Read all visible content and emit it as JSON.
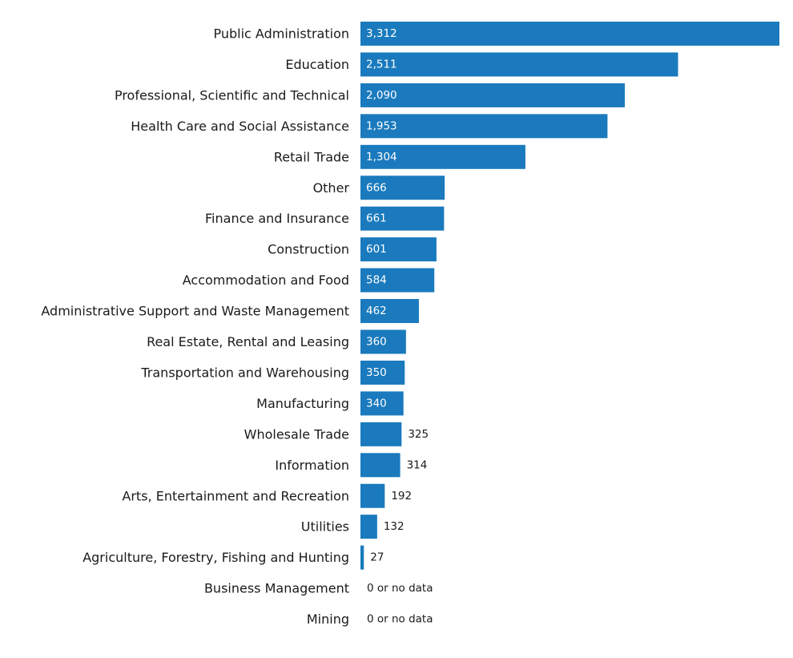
{
  "chart_data": {
    "type": "bar",
    "orientation": "horizontal",
    "title": "",
    "xlabel": "",
    "ylabel": "",
    "grid": false,
    "legend": "none",
    "bar_color": "#1a7abd",
    "xlim": [
      0,
      3312
    ],
    "categories": [
      "Public Administration",
      "Education",
      "Professional, Scientific and Technical",
      "Health Care and Social Assistance",
      "Retail Trade",
      "Other",
      "Finance and Insurance",
      "Construction",
      "Accommodation and Food",
      "Administrative Support and Waste Management",
      "Real Estate, Rental and Leasing",
      "Transportation and Warehousing",
      "Manufacturing",
      "Wholesale Trade",
      "Information",
      "Arts, Entertainment and Recreation",
      "Utilities",
      "Agriculture, Forestry, Fishing and Hunting",
      "Business Management",
      "Mining"
    ],
    "values": [
      3312,
      2511,
      2090,
      1953,
      1304,
      666,
      661,
      601,
      584,
      462,
      360,
      350,
      340,
      325,
      314,
      192,
      132,
      27,
      0,
      0
    ],
    "value_labels": [
      "3,312",
      "2,511",
      "2,090",
      "1,953",
      "1,304",
      "666",
      "661",
      "601",
      "584",
      "462",
      "360",
      "350",
      "340",
      "325",
      "314",
      "192",
      "132",
      "27",
      "0 or no data",
      "0 or no data"
    ]
  }
}
